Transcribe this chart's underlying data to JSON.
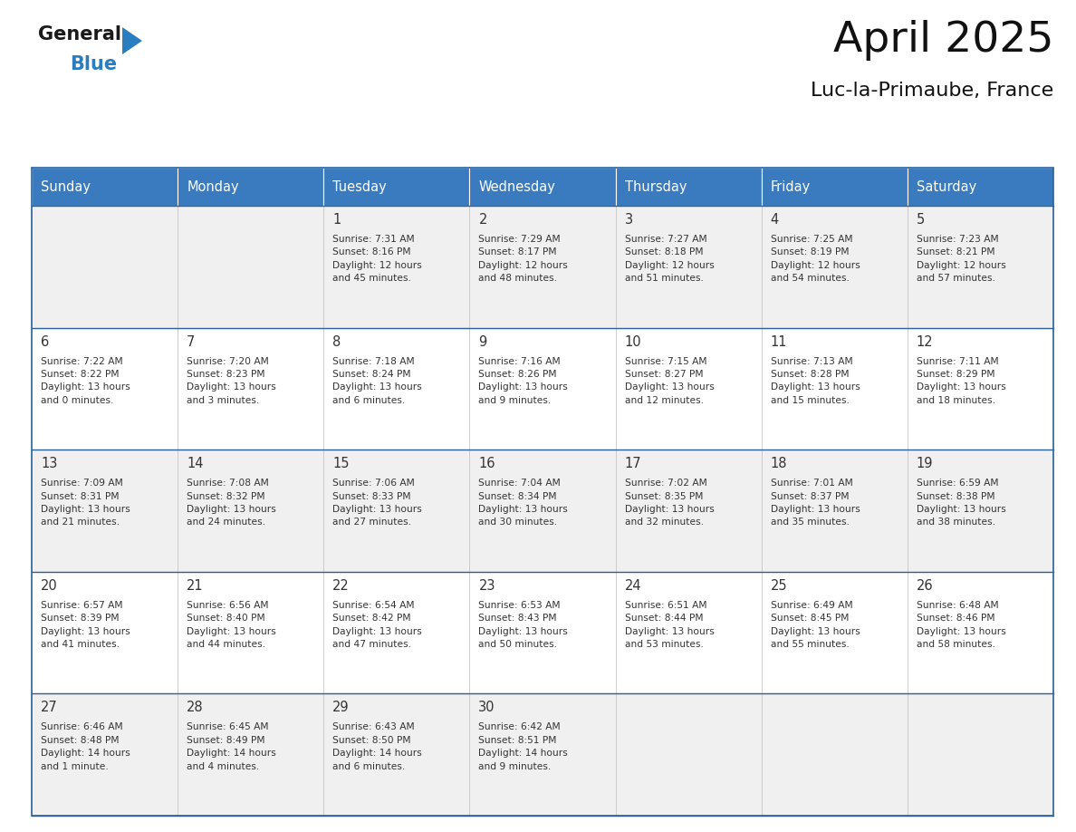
{
  "title": "April 2025",
  "subtitle": "Luc-la-Primaube, France",
  "header_bg_color": "#3a7bbf",
  "header_text_color": "#ffffff",
  "cell_bg_even": "#f0f0f0",
  "cell_bg_odd": "#ffffff",
  "border_color": "#2a6099",
  "text_color": "#333333",
  "days_of_week": [
    "Sunday",
    "Monday",
    "Tuesday",
    "Wednesday",
    "Thursday",
    "Friday",
    "Saturday"
  ],
  "weeks": [
    [
      {
        "day": null,
        "text": ""
      },
      {
        "day": null,
        "text": ""
      },
      {
        "day": 1,
        "text": "Sunrise: 7:31 AM\nSunset: 8:16 PM\nDaylight: 12 hours\nand 45 minutes."
      },
      {
        "day": 2,
        "text": "Sunrise: 7:29 AM\nSunset: 8:17 PM\nDaylight: 12 hours\nand 48 minutes."
      },
      {
        "day": 3,
        "text": "Sunrise: 7:27 AM\nSunset: 8:18 PM\nDaylight: 12 hours\nand 51 minutes."
      },
      {
        "day": 4,
        "text": "Sunrise: 7:25 AM\nSunset: 8:19 PM\nDaylight: 12 hours\nand 54 minutes."
      },
      {
        "day": 5,
        "text": "Sunrise: 7:23 AM\nSunset: 8:21 PM\nDaylight: 12 hours\nand 57 minutes."
      }
    ],
    [
      {
        "day": 6,
        "text": "Sunrise: 7:22 AM\nSunset: 8:22 PM\nDaylight: 13 hours\nand 0 minutes."
      },
      {
        "day": 7,
        "text": "Sunrise: 7:20 AM\nSunset: 8:23 PM\nDaylight: 13 hours\nand 3 minutes."
      },
      {
        "day": 8,
        "text": "Sunrise: 7:18 AM\nSunset: 8:24 PM\nDaylight: 13 hours\nand 6 minutes."
      },
      {
        "day": 9,
        "text": "Sunrise: 7:16 AM\nSunset: 8:26 PM\nDaylight: 13 hours\nand 9 minutes."
      },
      {
        "day": 10,
        "text": "Sunrise: 7:15 AM\nSunset: 8:27 PM\nDaylight: 13 hours\nand 12 minutes."
      },
      {
        "day": 11,
        "text": "Sunrise: 7:13 AM\nSunset: 8:28 PM\nDaylight: 13 hours\nand 15 minutes."
      },
      {
        "day": 12,
        "text": "Sunrise: 7:11 AM\nSunset: 8:29 PM\nDaylight: 13 hours\nand 18 minutes."
      }
    ],
    [
      {
        "day": 13,
        "text": "Sunrise: 7:09 AM\nSunset: 8:31 PM\nDaylight: 13 hours\nand 21 minutes."
      },
      {
        "day": 14,
        "text": "Sunrise: 7:08 AM\nSunset: 8:32 PM\nDaylight: 13 hours\nand 24 minutes."
      },
      {
        "day": 15,
        "text": "Sunrise: 7:06 AM\nSunset: 8:33 PM\nDaylight: 13 hours\nand 27 minutes."
      },
      {
        "day": 16,
        "text": "Sunrise: 7:04 AM\nSunset: 8:34 PM\nDaylight: 13 hours\nand 30 minutes."
      },
      {
        "day": 17,
        "text": "Sunrise: 7:02 AM\nSunset: 8:35 PM\nDaylight: 13 hours\nand 32 minutes."
      },
      {
        "day": 18,
        "text": "Sunrise: 7:01 AM\nSunset: 8:37 PM\nDaylight: 13 hours\nand 35 minutes."
      },
      {
        "day": 19,
        "text": "Sunrise: 6:59 AM\nSunset: 8:38 PM\nDaylight: 13 hours\nand 38 minutes."
      }
    ],
    [
      {
        "day": 20,
        "text": "Sunrise: 6:57 AM\nSunset: 8:39 PM\nDaylight: 13 hours\nand 41 minutes."
      },
      {
        "day": 21,
        "text": "Sunrise: 6:56 AM\nSunset: 8:40 PM\nDaylight: 13 hours\nand 44 minutes."
      },
      {
        "day": 22,
        "text": "Sunrise: 6:54 AM\nSunset: 8:42 PM\nDaylight: 13 hours\nand 47 minutes."
      },
      {
        "day": 23,
        "text": "Sunrise: 6:53 AM\nSunset: 8:43 PM\nDaylight: 13 hours\nand 50 minutes."
      },
      {
        "day": 24,
        "text": "Sunrise: 6:51 AM\nSunset: 8:44 PM\nDaylight: 13 hours\nand 53 minutes."
      },
      {
        "day": 25,
        "text": "Sunrise: 6:49 AM\nSunset: 8:45 PM\nDaylight: 13 hours\nand 55 minutes."
      },
      {
        "day": 26,
        "text": "Sunrise: 6:48 AM\nSunset: 8:46 PM\nDaylight: 13 hours\nand 58 minutes."
      }
    ],
    [
      {
        "day": 27,
        "text": "Sunrise: 6:46 AM\nSunset: 8:48 PM\nDaylight: 14 hours\nand 1 minute."
      },
      {
        "day": 28,
        "text": "Sunrise: 6:45 AM\nSunset: 8:49 PM\nDaylight: 14 hours\nand 4 minutes."
      },
      {
        "day": 29,
        "text": "Sunrise: 6:43 AM\nSunset: 8:50 PM\nDaylight: 14 hours\nand 6 minutes."
      },
      {
        "day": 30,
        "text": "Sunrise: 6:42 AM\nSunset: 8:51 PM\nDaylight: 14 hours\nand 9 minutes."
      },
      {
        "day": null,
        "text": ""
      },
      {
        "day": null,
        "text": ""
      },
      {
        "day": null,
        "text": ""
      }
    ]
  ],
  "logo_color_general": "#1a1a1a",
  "logo_color_blue": "#2a7dbf",
  "logo_triangle_color": "#2a7dbf",
  "figsize": [
    11.88,
    9.18
  ],
  "dpi": 100
}
